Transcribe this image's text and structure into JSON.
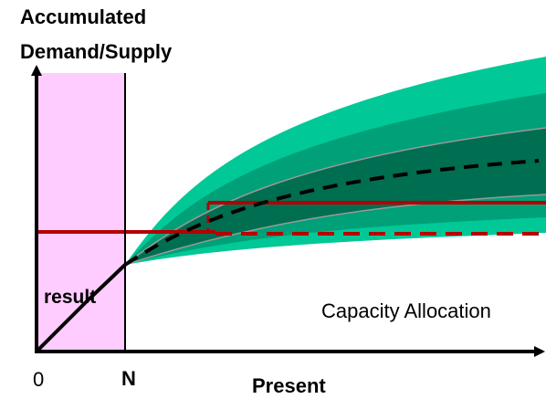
{
  "y_axis_title": {
    "line1": "Accumulated",
    "line2": "Demand/Supply"
  },
  "x_axis": {
    "tick_0": "0",
    "tick_n": "N",
    "label": "Present"
  },
  "regions": {
    "result_label": "result",
    "result_color": "#FFCCFF"
  },
  "annotations": {
    "capacity_label": "Capacity Allocation"
  },
  "colors": {
    "outer_band": "#00C896",
    "middle_band": "#00A078",
    "inner_band": "#006E50",
    "history_line": "#000000",
    "forecast_line": "#000000",
    "capacity_line": "#B40000"
  }
}
